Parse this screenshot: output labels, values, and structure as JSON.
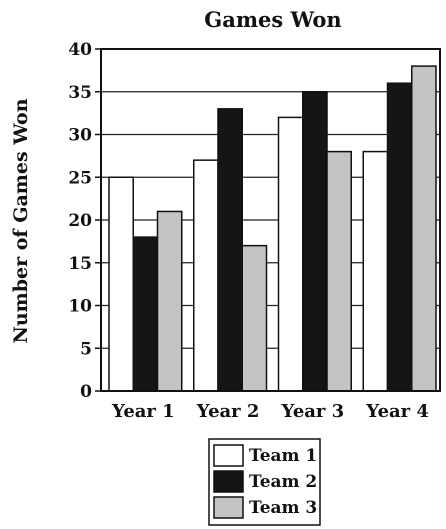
{
  "chart_data": {
    "type": "bar",
    "title": "Games Won",
    "xlabel": "",
    "ylabel": "Number of Games Won",
    "categories": [
      "Year 1",
      "Year 2",
      "Year 3",
      "Year 4"
    ],
    "series": [
      {
        "name": "Team 1",
        "values": [
          25,
          27,
          32,
          28
        ],
        "color": "#ffffff"
      },
      {
        "name": "Team 2",
        "values": [
          18,
          33,
          35,
          36
        ],
        "color": "#151515"
      },
      {
        "name": "Team 3",
        "values": [
          21,
          17,
          28,
          38
        ],
        "color": "#c4c4c4"
      }
    ],
    "ylim": [
      0,
      40
    ],
    "yticks": [
      "0",
      "5",
      "10",
      "15",
      "20",
      "25",
      "30",
      "35",
      "40"
    ],
    "grid": "horizontal",
    "legend_position": "bottom-center"
  }
}
